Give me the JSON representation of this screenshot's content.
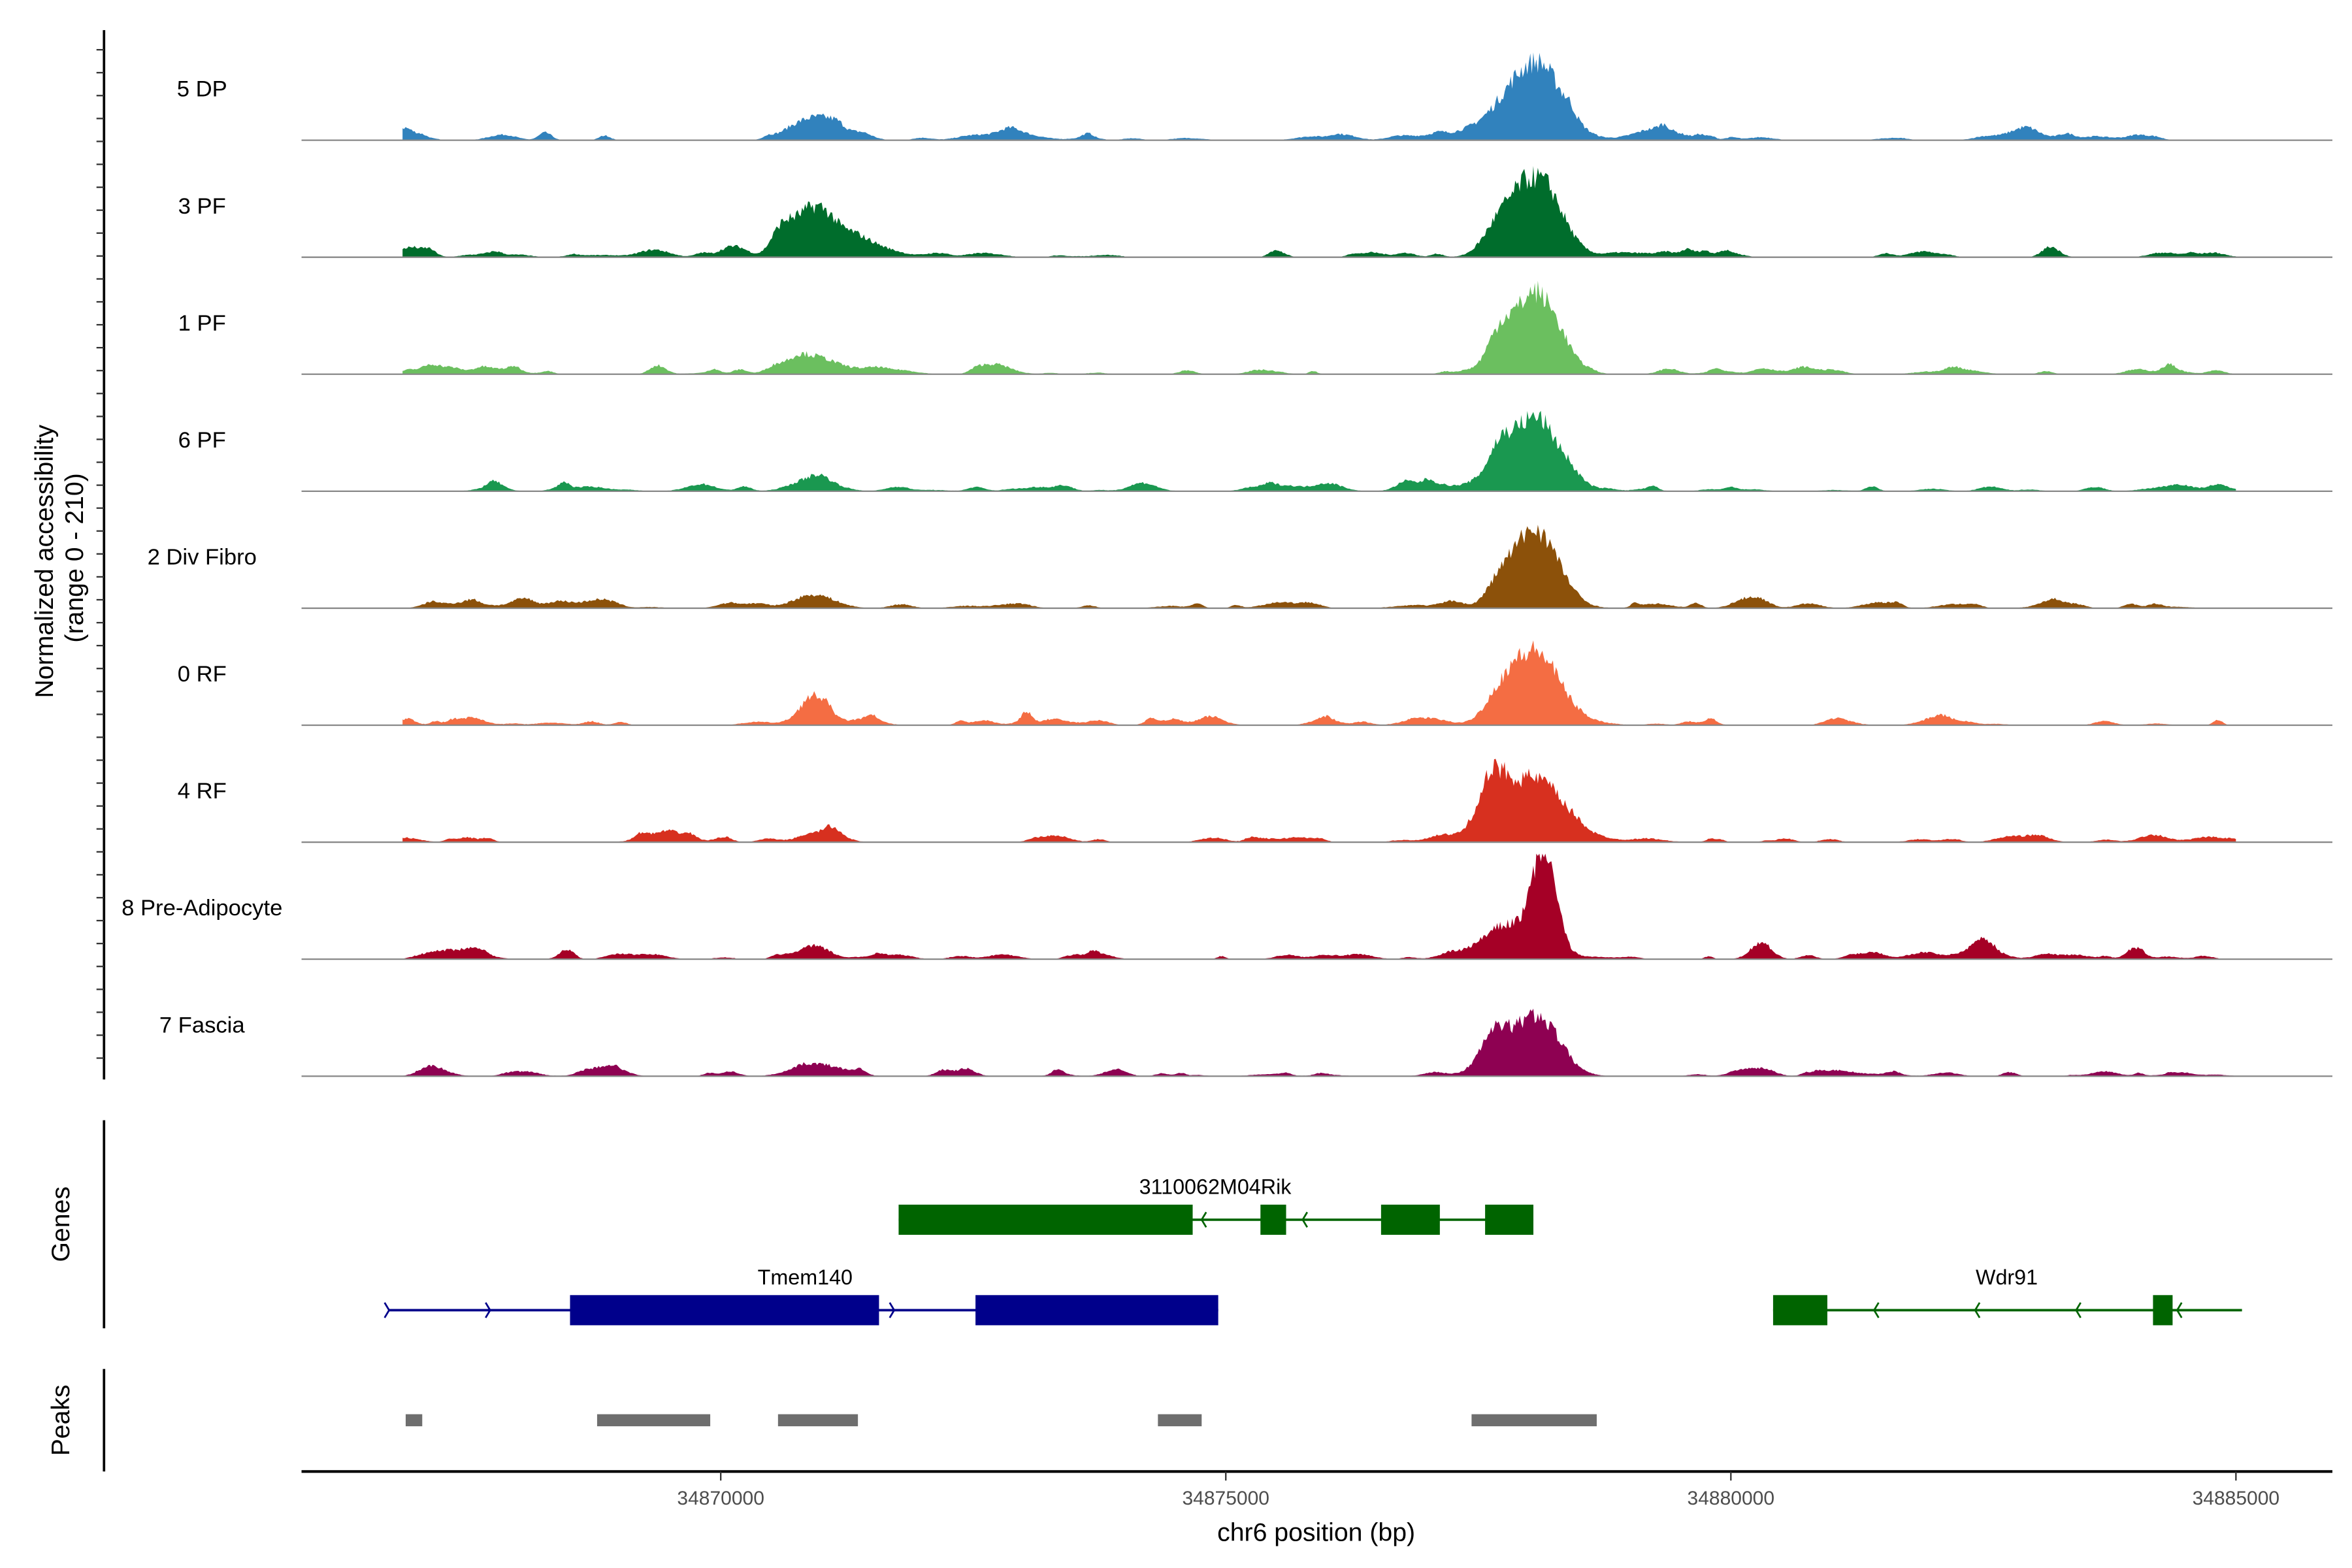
{
  "chart_data": {
    "type": "area",
    "title": "",
    "ylabel": "Normalized accessibility\n(range 0 - 210)",
    "ylabel_lines": [
      "Normalized accessibility",
      "(range 0 - 210)"
    ],
    "ylim": [
      0,
      210
    ],
    "xlabel": "chr6 position (bp)",
    "xlim": [
      34865850,
      34885955
    ],
    "xticks": [
      34870000,
      34875000,
      34880000,
      34885000
    ],
    "xtick_labels": [
      "34870000",
      "34875000",
      "34880000",
      "34885000"
    ],
    "coverage_range_bp": [
      34866850,
      34885000
    ],
    "tracks": [
      {
        "name": "5 DP",
        "color": "#3182bd",
        "peaks": [
          [
            34878060,
            140,
            260
          ],
          [
            34877700,
            25,
            250
          ],
          [
            34870925,
            40,
            200
          ],
          [
            34879280,
            18,
            250
          ],
          [
            34866940,
            10,
            150
          ]
        ]
      },
      {
        "name": "3 PF",
        "color": "#006d2c",
        "peaks": [
          [
            34878060,
            155,
            240
          ],
          [
            34877690,
            40,
            150
          ],
          [
            34870925,
            90,
            200
          ],
          [
            34870600,
            40,
            100
          ],
          [
            34871400,
            22,
            250
          ],
          [
            34866940,
            20,
            150
          ]
        ]
      },
      {
        "name": "1 PF",
        "color": "#6bbf5f",
        "peaks": [
          [
            34878060,
            155,
            230
          ],
          [
            34877700,
            55,
            120
          ],
          [
            34870925,
            35,
            220
          ],
          [
            34871500,
            10,
            200
          ]
        ]
      },
      {
        "name": "6 PF",
        "color": "#1a9850",
        "peaks": [
          [
            34878060,
            136,
            250
          ],
          [
            34877700,
            45,
            120
          ],
          [
            34870925,
            27,
            200
          ],
          [
            34877000,
            8,
            200
          ]
        ]
      },
      {
        "name": "2 Div Fibro",
        "color": "#8c510a",
        "peaks": [
          [
            34878060,
            158,
            230
          ],
          [
            34877700,
            30,
            120
          ],
          [
            34870925,
            27,
            200
          ],
          [
            34880300,
            12,
            100
          ]
        ]
      },
      {
        "name": "0 RF",
        "color": "#f46d43",
        "peaks": [
          [
            34878060,
            145,
            230
          ],
          [
            34877700,
            40,
            150
          ],
          [
            34870925,
            49,
            150
          ],
          [
            34877000,
            8,
            200
          ]
        ]
      },
      {
        "name": "4 RF",
        "color": "#d7301f",
        "peaks": [
          [
            34878060,
            123,
            250
          ],
          [
            34877650,
            95,
            160
          ],
          [
            34869500,
            10,
            200
          ],
          [
            34870925,
            11,
            200
          ]
        ]
      },
      {
        "name": "8 Pre-Adipocyte",
        "color": "#a50026",
        "peaks": [
          [
            34878160,
            183,
            110
          ],
          [
            34877850,
            70,
            300
          ],
          [
            34870925,
            27,
            150
          ],
          [
            34880300,
            30,
            100
          ],
          [
            34882500,
            30,
            100
          ]
        ]
      },
      {
        "name": "7 Fascia",
        "color": "#8e0152",
        "peaks": [
          [
            34878060,
            120,
            230
          ],
          [
            34877650,
            70,
            130
          ],
          [
            34870925,
            19,
            200
          ],
          [
            34868900,
            12,
            150
          ]
        ]
      }
    ],
    "genes": [
      {
        "name": "3110062M04Rik",
        "strand": "-",
        "color": "#006400",
        "start": 34871761,
        "end": 34878045,
        "exons": [
          [
            34871761,
            34874672
          ],
          [
            34875343,
            34875597
          ],
          [
            34876537,
            34877119
          ],
          [
            34877567,
            34878045
          ]
        ],
        "row": 0
      },
      {
        "name": "Tmem140",
        "strand": "+",
        "color": "#00008b",
        "start": 34866717,
        "end": 34874925,
        "exons": [
          [
            34868508,
            34871567
          ],
          [
            34872522,
            34874925
          ]
        ],
        "row": 1
      },
      {
        "name": "Wdr91",
        "strand": "-",
        "color": "#006400",
        "start": 34880418,
        "end": 34885060,
        "exons": [
          [
            34880418,
            34880955
          ],
          [
            34884179,
            34884373
          ]
        ],
        "row": 1
      }
    ],
    "peaks_track": [
      [
        34866881,
        34867045
      ],
      [
        34868776,
        34869896
      ],
      [
        34870567,
        34871358
      ],
      [
        34874328,
        34874761
      ],
      [
        34877433,
        34878672
      ]
    ],
    "genes_label": "Genes",
    "peaks_label": "Peaks",
    "peak_color": "#6e6e6e"
  }
}
